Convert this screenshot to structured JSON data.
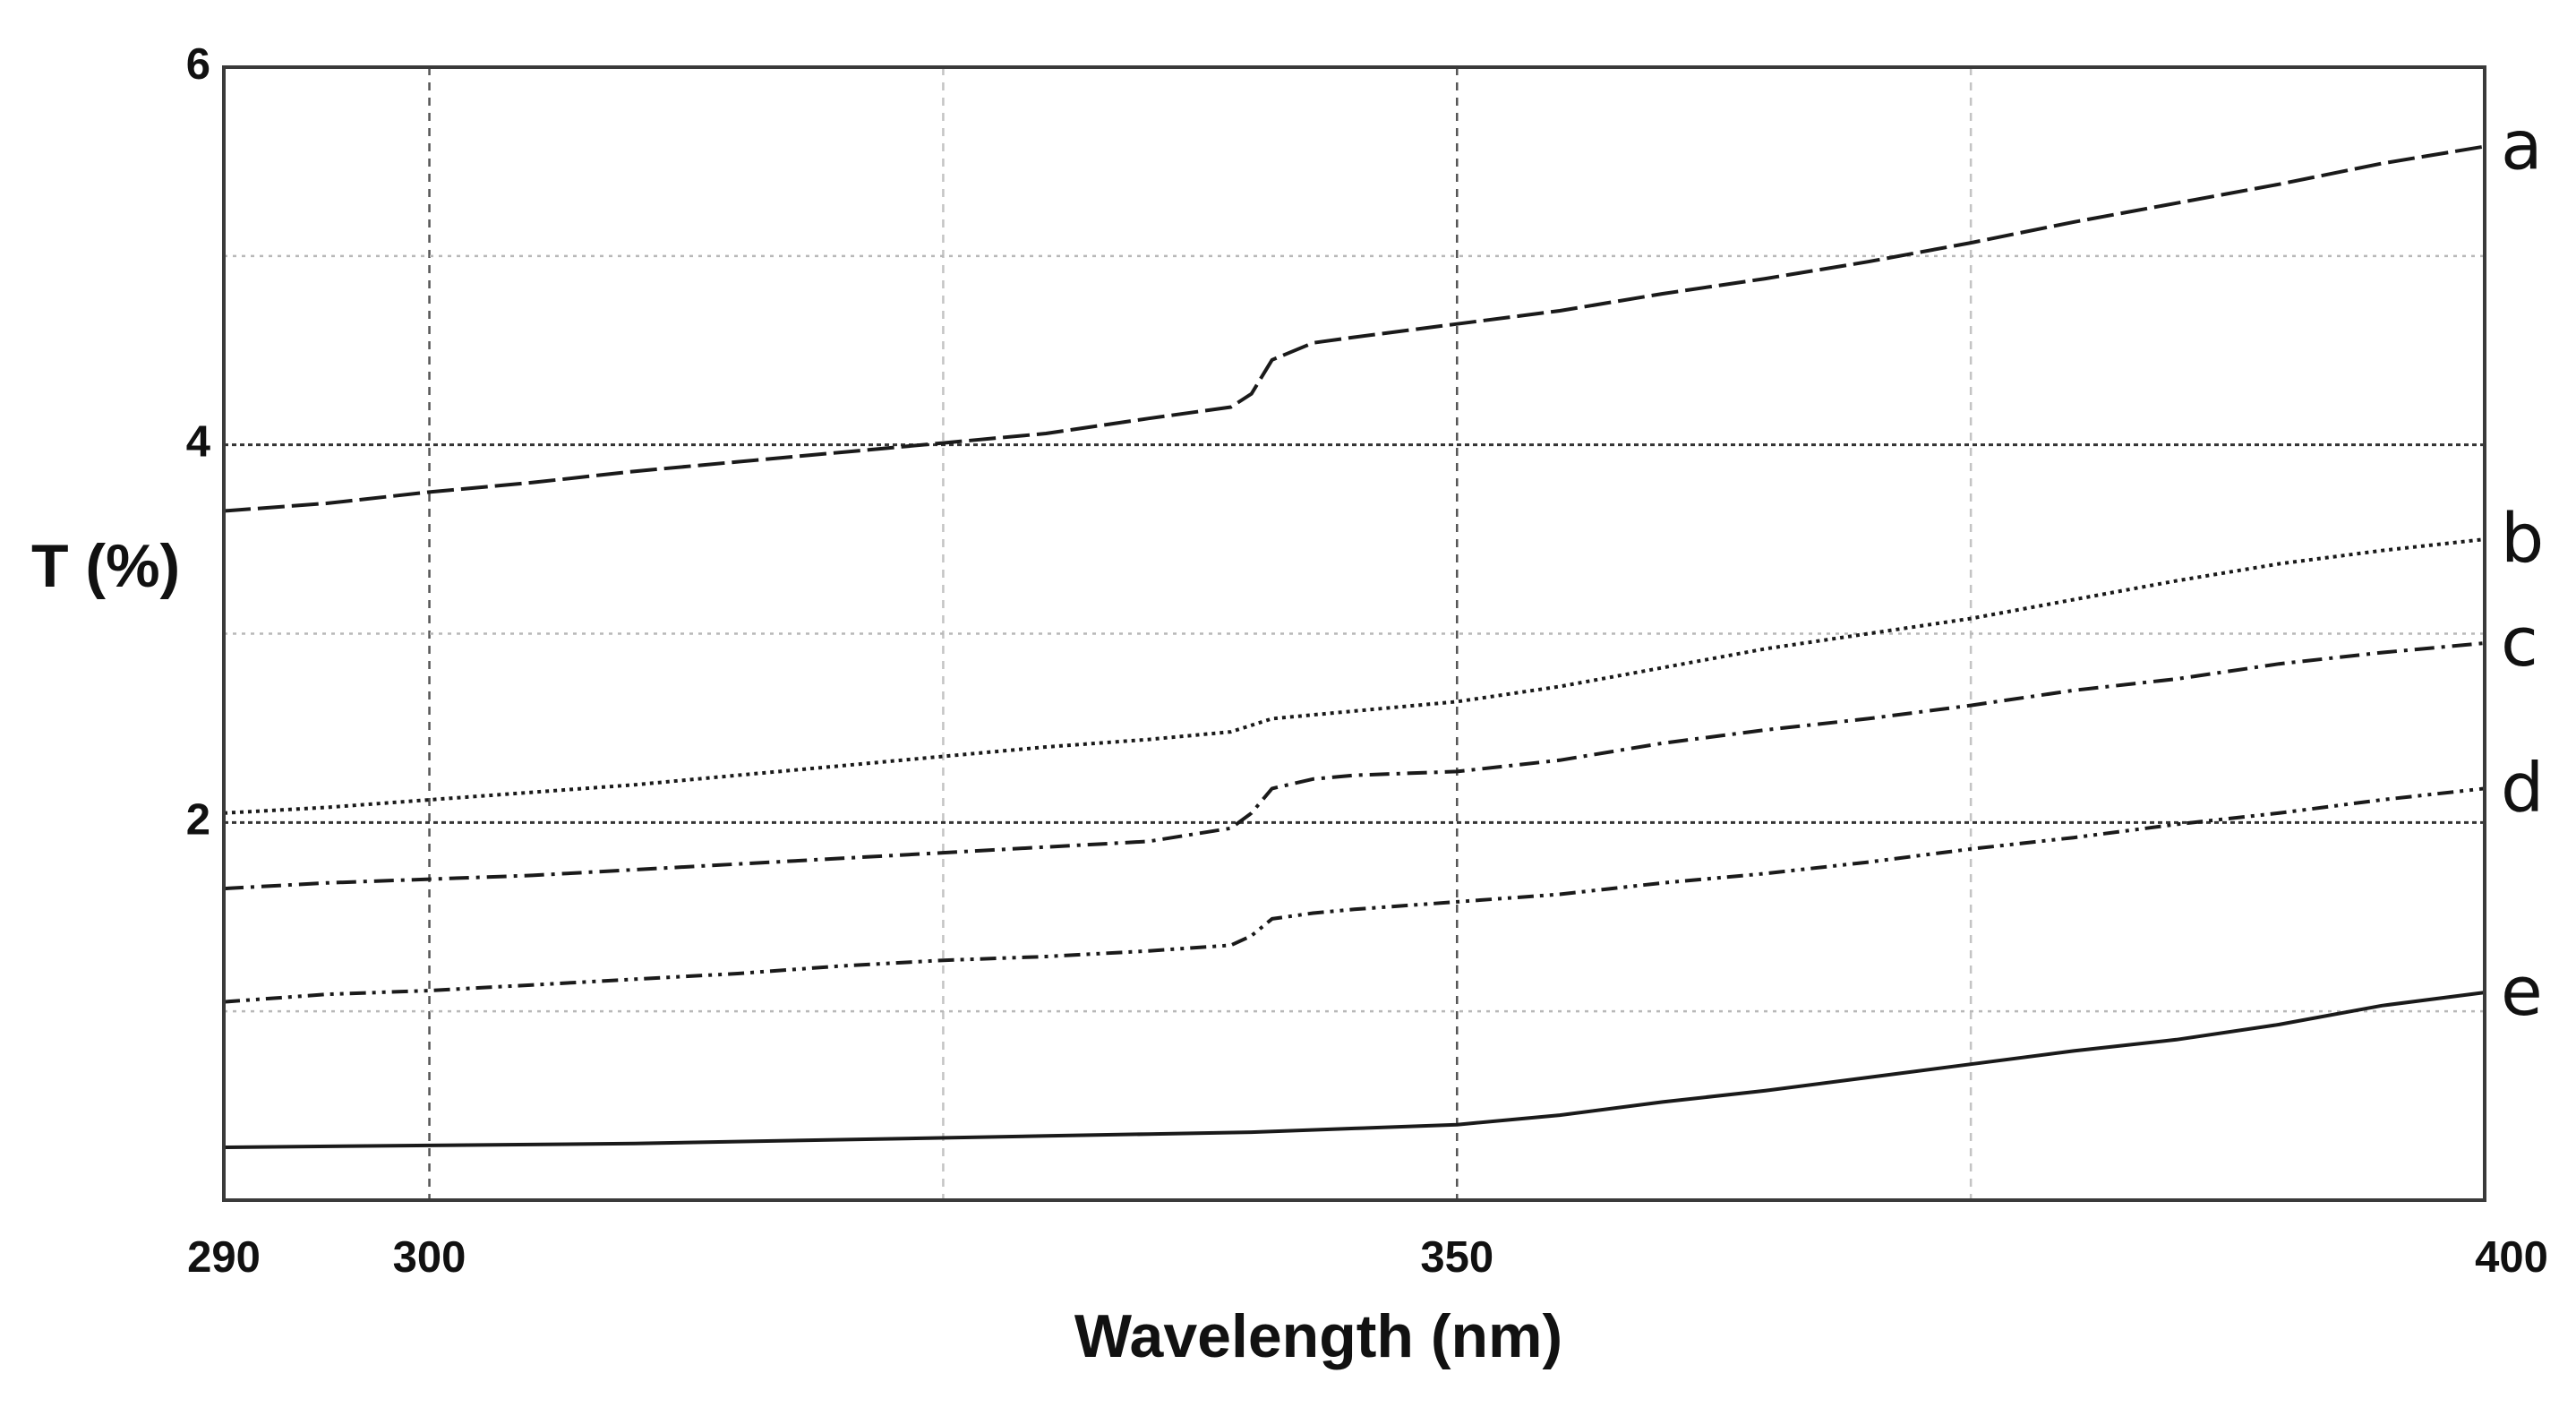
{
  "chart_data": {
    "type": "line",
    "title": "",
    "xlabel": "Wavelength (nm)",
    "ylabel": "T (%)",
    "xlim": [
      290,
      400
    ],
    "ylim": [
      0,
      6
    ],
    "x_ticks": [
      290,
      300,
      350,
      400
    ],
    "y_ticks": [
      2,
      4,
      6
    ],
    "grid": true,
    "series": [
      {
        "name": "a",
        "line_style": "dashed",
        "points": [
          [
            290,
            3.65
          ],
          [
            295,
            3.69
          ],
          [
            300,
            3.75
          ],
          [
            305,
            3.8
          ],
          [
            310,
            3.86
          ],
          [
            315,
            3.91
          ],
          [
            320,
            3.96
          ],
          [
            325,
            4.01
          ],
          [
            330,
            4.06
          ],
          [
            335,
            4.14
          ],
          [
            339,
            4.2
          ],
          [
            340,
            4.27
          ],
          [
            341,
            4.45
          ],
          [
            343,
            4.54
          ],
          [
            345,
            4.57
          ],
          [
            350,
            4.64
          ],
          [
            355,
            4.71
          ],
          [
            360,
            4.8
          ],
          [
            365,
            4.88
          ],
          [
            370,
            4.97
          ],
          [
            375,
            5.07
          ],
          [
            380,
            5.18
          ],
          [
            385,
            5.28
          ],
          [
            390,
            5.38
          ],
          [
            395,
            5.49
          ],
          [
            400,
            5.58
          ]
        ]
      },
      {
        "name": "b",
        "line_style": "dotted",
        "points": [
          [
            290,
            2.05
          ],
          [
            295,
            2.08
          ],
          [
            300,
            2.12
          ],
          [
            305,
            2.16
          ],
          [
            310,
            2.2
          ],
          [
            315,
            2.25
          ],
          [
            320,
            2.3
          ],
          [
            325,
            2.35
          ],
          [
            330,
            2.4
          ],
          [
            335,
            2.44
          ],
          [
            339,
            2.48
          ],
          [
            341,
            2.55
          ],
          [
            345,
            2.59
          ],
          [
            350,
            2.64
          ],
          [
            355,
            2.72
          ],
          [
            360,
            2.82
          ],
          [
            365,
            2.92
          ],
          [
            370,
            3.0
          ],
          [
            375,
            3.08
          ],
          [
            380,
            3.18
          ],
          [
            385,
            3.28
          ],
          [
            390,
            3.37
          ],
          [
            395,
            3.44
          ],
          [
            400,
            3.5
          ]
        ]
      },
      {
        "name": "c",
        "line_style": "dash-dot",
        "points": [
          [
            290,
            1.65
          ],
          [
            295,
            1.68
          ],
          [
            300,
            1.7
          ],
          [
            305,
            1.72
          ],
          [
            310,
            1.75
          ],
          [
            315,
            1.78
          ],
          [
            320,
            1.81
          ],
          [
            325,
            1.84
          ],
          [
            330,
            1.87
          ],
          [
            335,
            1.9
          ],
          [
            339,
            1.97
          ],
          [
            340,
            2.05
          ],
          [
            341,
            2.18
          ],
          [
            343,
            2.23
          ],
          [
            345,
            2.25
          ],
          [
            350,
            2.27
          ],
          [
            355,
            2.33
          ],
          [
            360,
            2.42
          ],
          [
            365,
            2.49
          ],
          [
            370,
            2.55
          ],
          [
            375,
            2.62
          ],
          [
            380,
            2.7
          ],
          [
            385,
            2.76
          ],
          [
            390,
            2.84
          ],
          [
            395,
            2.9
          ],
          [
            400,
            2.95
          ]
        ]
      },
      {
        "name": "d",
        "line_style": "dash-dot-dot",
        "points": [
          [
            290,
            1.05
          ],
          [
            295,
            1.09
          ],
          [
            300,
            1.11
          ],
          [
            305,
            1.14
          ],
          [
            310,
            1.17
          ],
          [
            315,
            1.2
          ],
          [
            320,
            1.24
          ],
          [
            325,
            1.27
          ],
          [
            330,
            1.29
          ],
          [
            335,
            1.32
          ],
          [
            339,
            1.35
          ],
          [
            340,
            1.4
          ],
          [
            341,
            1.49
          ],
          [
            343,
            1.52
          ],
          [
            345,
            1.54
          ],
          [
            350,
            1.58
          ],
          [
            355,
            1.62
          ],
          [
            360,
            1.68
          ],
          [
            365,
            1.73
          ],
          [
            370,
            1.79
          ],
          [
            375,
            1.86
          ],
          [
            380,
            1.92
          ],
          [
            385,
            1.99
          ],
          [
            390,
            2.05
          ],
          [
            395,
            2.12
          ],
          [
            400,
            2.18
          ]
        ]
      },
      {
        "name": "e",
        "line_style": "solid",
        "points": [
          [
            290,
            0.28
          ],
          [
            300,
            0.29
          ],
          [
            310,
            0.3
          ],
          [
            320,
            0.32
          ],
          [
            330,
            0.34
          ],
          [
            335,
            0.35
          ],
          [
            340,
            0.36
          ],
          [
            345,
            0.38
          ],
          [
            350,
            0.4
          ],
          [
            355,
            0.45
          ],
          [
            360,
            0.52
          ],
          [
            365,
            0.58
          ],
          [
            370,
            0.65
          ],
          [
            375,
            0.72
          ],
          [
            380,
            0.79
          ],
          [
            385,
            0.85
          ],
          [
            390,
            0.93
          ],
          [
            395,
            1.03
          ],
          [
            400,
            1.1
          ]
        ]
      }
    ],
    "series_labels": [
      "a",
      "b",
      "c",
      "d",
      "e"
    ],
    "legend": "inline-right"
  }
}
